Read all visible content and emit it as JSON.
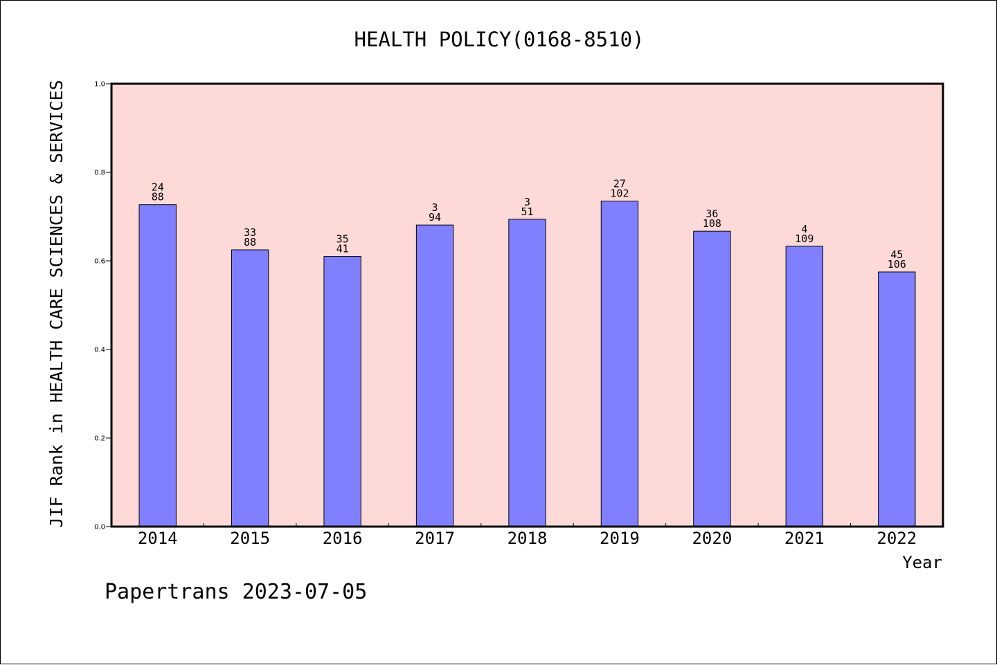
{
  "chart_data": {
    "type": "bar",
    "title": "HEALTH POLICY(0168-8510)",
    "ylabel": "JIF Rank in HEALTH CARE SCIENCES & SERVICES",
    "xlabel": "Year",
    "categories": [
      "2014",
      "2015",
      "2016",
      "2017",
      "2018",
      "2019",
      "2020",
      "2021",
      "2022"
    ],
    "values": [
      0.727,
      0.625,
      0.61,
      0.681,
      0.694,
      0.735,
      0.667,
      0.633,
      0.575
    ],
    "rank_labels": [
      "24",
      "33",
      "35",
      "3",
      "3",
      "27",
      "36",
      "4",
      "45"
    ],
    "total_labels": [
      "88",
      "88",
      "41",
      "94",
      "51",
      "102",
      "108",
      "109",
      "106"
    ],
    "ylim": [
      0,
      1.0
    ],
    "yticks": [
      "0.0",
      "0.2",
      "0.4",
      "0.6",
      "0.8",
      "1.0"
    ],
    "grid": false,
    "colors": {
      "plot_bg": "#fddad8",
      "bar": "#8080ff",
      "bar_edge": "#000000"
    }
  },
  "footer": "Papertrans 2023-07-05"
}
